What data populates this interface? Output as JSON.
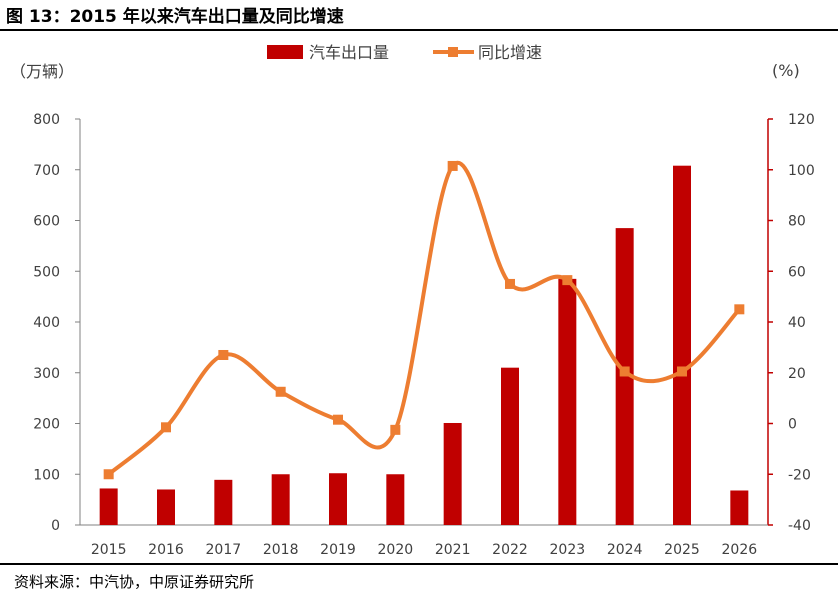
{
  "figure": {
    "title": "图 13：2015 年以来汽车出口量及同比增速",
    "source": "资料来源：中汽协，中原证券研究所"
  },
  "chart_data": {
    "type": "bar",
    "categories": [
      "2015",
      "2016",
      "2017",
      "2018",
      "2019",
      "2020",
      "2021",
      "2022",
      "2023",
      "2024",
      "2025",
      "2026"
    ],
    "series": [
      {
        "name": "汽车出口量",
        "type": "bar",
        "axis": "left",
        "color": "#c00000",
        "values": [
          72,
          70,
          89,
          100,
          102,
          100,
          201,
          310,
          485,
          585,
          708,
          68
        ]
      },
      {
        "name": "同比增速",
        "type": "line",
        "axis": "right",
        "color": "#ed7d31",
        "smooth": true,
        "values": [
          -20,
          -1.5,
          27,
          12.5,
          1.5,
          -2.5,
          101.5,
          55,
          56.5,
          20.5,
          20.5,
          45
        ]
      }
    ],
    "left_axis": {
      "label": "（万辆）",
      "min": 0,
      "max": 800,
      "ticks": [
        "0",
        "100",
        "200",
        "300",
        "400",
        "500",
        "600",
        "700",
        "800"
      ]
    },
    "right_axis": {
      "label": "(%)",
      "min": -40,
      "max": 120,
      "ticks": [
        "-40",
        "-20",
        "0",
        "20",
        "40",
        "60",
        "80",
        "100",
        "120"
      ],
      "color": "#c00000"
    },
    "legend_position": "top-center",
    "grid": false
  }
}
